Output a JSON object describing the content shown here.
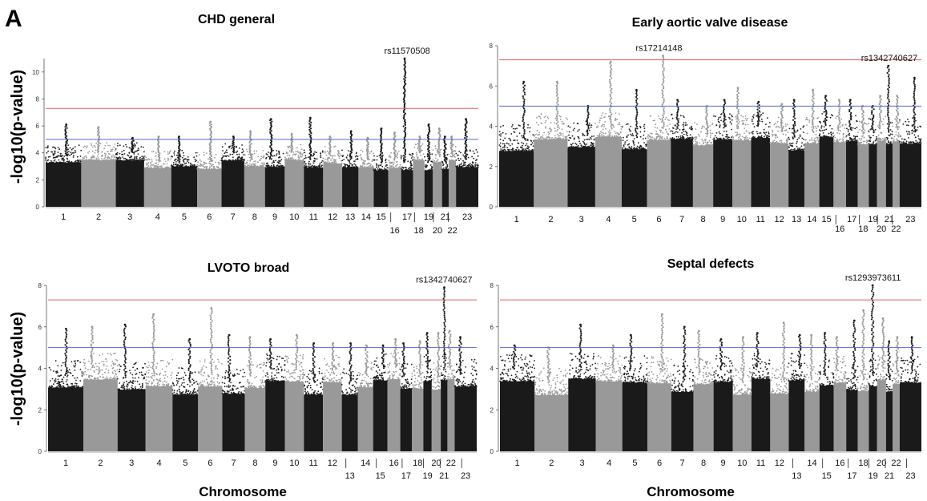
{
  "figure": {
    "panel_letter": "A",
    "y_axis_label": "-log10(p-value)",
    "x_axis_label": "Chromosome",
    "colors": {
      "dark": "#1a1a1a",
      "light": "#999999",
      "threshold_genome": "#e06060",
      "threshold_suggestive": "#5a64d8"
    }
  },
  "chart_data": [
    {
      "type": "scatter",
      "title": "CHD general",
      "ylim": [
        0,
        11
      ],
      "yticks": [
        0,
        2,
        4,
        6,
        8,
        10
      ],
      "genome_wide_line": 7.3,
      "suggestive_line": 5,
      "annotation": {
        "label": "rs11570508",
        "chromosome": 17,
        "value": 11
      },
      "chromosome_labels_upper": [
        "1",
        "2",
        "3",
        "4",
        "5",
        "6",
        "7",
        "8",
        "9",
        "10",
        "11",
        "12",
        "13",
        "14",
        "15",
        "17",
        "19",
        "21",
        "23"
      ],
      "chromosome_labels_lower": [
        "16",
        "18",
        "20",
        "22"
      ],
      "chromosomes": [
        1,
        2,
        3,
        4,
        5,
        6,
        7,
        8,
        9,
        10,
        11,
        12,
        13,
        14,
        15,
        16,
        17,
        18,
        19,
        20,
        21,
        22,
        23
      ],
      "peak_values": [
        6.1,
        5.9,
        5.1,
        5.2,
        5.2,
        6.3,
        5.2,
        5.6,
        6.5,
        5.4,
        6.6,
        5.2,
        5.6,
        5.1,
        5.8,
        5.5,
        11,
        5.2,
        6.1,
        5.8,
        5.2,
        5.2,
        6.5
      ]
    },
    {
      "type": "scatter",
      "title": "Early aortic valve disease",
      "ylim": [
        0,
        8
      ],
      "yticks": [
        0,
        2,
        4,
        6,
        8
      ],
      "genome_wide_line": 7.3,
      "suggestive_line": 5,
      "annotations": [
        {
          "label": "rs17214148",
          "chromosome": 6,
          "value": 7.5
        },
        {
          "label": "rs1342740627",
          "chromosome": 21,
          "value": 7.0
        }
      ],
      "chromosome_labels_upper": [
        "1",
        "2",
        "3",
        "4",
        "5",
        "6",
        "7",
        "8",
        "9",
        "10",
        "11",
        "12",
        "13",
        "14",
        "15",
        "17",
        "19",
        "21",
        "23"
      ],
      "chromosome_labels_lower": [
        "16",
        "18",
        "20",
        "22"
      ],
      "chromosomes": [
        1,
        2,
        3,
        4,
        5,
        6,
        7,
        8,
        9,
        10,
        11,
        12,
        13,
        14,
        15,
        16,
        17,
        18,
        19,
        20,
        21,
        22,
        23
      ],
      "peak_values": [
        6.2,
        6.2,
        5.0,
        7.2,
        5.8,
        7.5,
        5.3,
        5.0,
        5.3,
        5.9,
        5.2,
        5.1,
        5.3,
        5.8,
        5.5,
        5.3,
        5.3,
        5.0,
        5.0,
        5.5,
        7.0,
        5.5,
        6.4
      ]
    },
    {
      "type": "scatter",
      "title": "LVOTO broad",
      "ylim": [
        0,
        8
      ],
      "yticks": [
        0,
        2,
        4,
        6,
        8
      ],
      "genome_wide_line": 7.3,
      "suggestive_line": 5,
      "annotation": {
        "label": "rs1342740627",
        "chromosome": 21,
        "value": 7.9
      },
      "chromosome_labels_upper": [
        "1",
        "2",
        "3",
        "4",
        "5",
        "6",
        "7",
        "8",
        "9",
        "10",
        "11",
        "12",
        "14",
        "16",
        "18",
        "20",
        "22"
      ],
      "chromosome_labels_lower": [
        "13",
        "15",
        "17",
        "19",
        "21",
        "23"
      ],
      "chromosomes": [
        1,
        2,
        3,
        4,
        5,
        6,
        7,
        8,
        9,
        10,
        11,
        12,
        13,
        14,
        15,
        16,
        17,
        18,
        19,
        20,
        21,
        22,
        23
      ],
      "peak_values": [
        5.9,
        6.0,
        6.1,
        6.6,
        5.4,
        6.9,
        5.6,
        5.5,
        5.4,
        5.6,
        5.2,
        5.2,
        5.2,
        5.1,
        5.1,
        5.4,
        5.2,
        5.3,
        5.7,
        5.7,
        7.9,
        5.8,
        5.5
      ]
    },
    {
      "type": "scatter",
      "title": "Septal defects",
      "ylim": [
        0,
        8
      ],
      "yticks": [
        0,
        2,
        4,
        6,
        8
      ],
      "genome_wide_line": 7.3,
      "suggestive_line": 5,
      "annotation": {
        "label": "rs1293973611",
        "chromosome": 19,
        "value": 8.0
      },
      "chromosome_labels_upper": [
        "1",
        "2",
        "3",
        "4",
        "5",
        "6",
        "7",
        "8",
        "9",
        "10",
        "11",
        "12",
        "14",
        "16",
        "18",
        "20",
        "22"
      ],
      "chromosome_labels_lower": [
        "13",
        "15",
        "17",
        "19",
        "21",
        "23"
      ],
      "chromosomes": [
        1,
        2,
        3,
        4,
        5,
        6,
        7,
        8,
        9,
        10,
        11,
        12,
        13,
        14,
        15,
        16,
        17,
        18,
        19,
        20,
        21,
        22,
        23
      ],
      "peak_values": [
        5.1,
        5.0,
        6.1,
        5.1,
        5.6,
        6.6,
        6.0,
        5.8,
        5.4,
        5.5,
        5.7,
        6.2,
        5.6,
        5.6,
        5.7,
        5.5,
        6.3,
        6.8,
        8.0,
        6.4,
        5.3,
        5.5,
        5.5
      ]
    }
  ]
}
